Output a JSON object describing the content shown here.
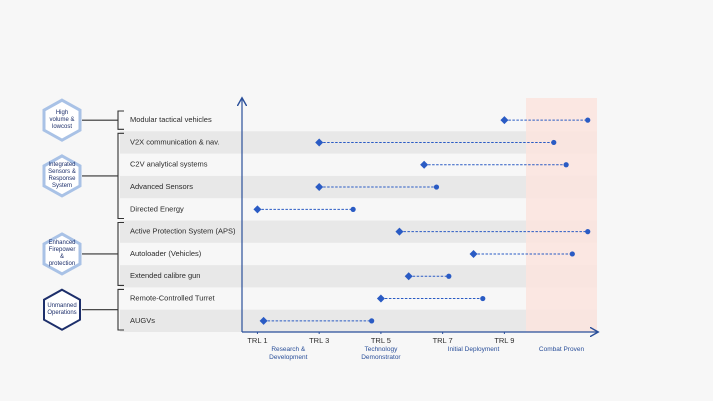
{
  "chart_data": {
    "type": "range",
    "categories": [
      "Modular tactical vehicles",
      "V2X communication & nav.",
      "C2V analytical systems",
      "Advanced Sensors",
      "Directed Energy",
      "Active Protection System (APS)",
      "Autoloader (Vehicles)",
      "Extended calibre gun",
      "Remote-Controlled Turret",
      "AUGVs"
    ],
    "start": [
      9,
      3,
      6.4,
      3,
      1,
      5.6,
      8,
      5.9,
      5,
      1.2
    ],
    "end": [
      11.7,
      10.6,
      11,
      6.8,
      4.1,
      11.7,
      11.2,
      7.2,
      8.3,
      4.7
    ],
    "color": "#2a5bc4",
    "xlim": [
      0.5,
      12
    ],
    "xticks": [
      {
        "value": 1,
        "label": "TRL 1"
      },
      {
        "value": 3,
        "label": "TRL 3"
      },
      {
        "value": 5,
        "label": "TRL 5"
      },
      {
        "value": 7,
        "label": "TRL 7"
      },
      {
        "value": 9,
        "label": "TRL 9"
      }
    ],
    "stages": [
      {
        "value": 2,
        "label": "Research & Development"
      },
      {
        "value": 5,
        "label": "Technology Demonstrator"
      },
      {
        "value": 8,
        "label": "Initial Deployment"
      },
      {
        "value": 10.85,
        "label": "Combat Proven"
      }
    ],
    "highlight": {
      "xlim": [
        9.7,
        12
      ],
      "color": "#fbe4df"
    },
    "stripe_color": "#e8e8e8",
    "groups": [
      {
        "label": "High volume & lowcost",
        "rows": [
          0,
          0
        ],
        "color": "#a9c2e6"
      },
      {
        "label": "Integrated Sensors & Response System",
        "rows": [
          1,
          4
        ],
        "color": "#a9c2e6"
      },
      {
        "label": "Enhanced Firepower & protection",
        "rows": [
          5,
          7
        ],
        "color": "#a9c2e6"
      },
      {
        "label": "Unmanned Operations",
        "rows": [
          8,
          9
        ],
        "color": "#1d2f6b"
      }
    ]
  }
}
